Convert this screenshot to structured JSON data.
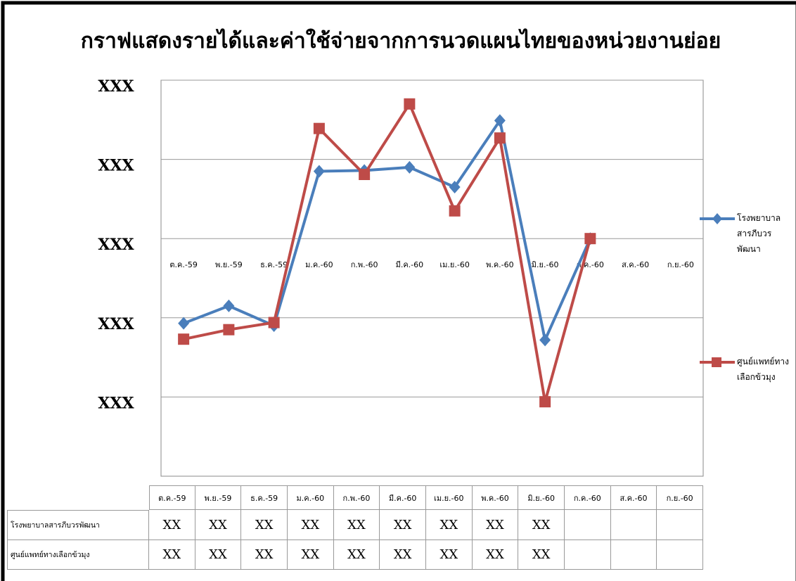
{
  "chart_data": {
    "type": "line",
    "title": "กราฟแสดงรายได้และค่าใช้จ่ายจากการนวดแผนไทยของหน่วยงานย่อย",
    "categories": [
      "ต.ค.-59",
      "พ.ย.-59",
      "ธ.ค.-59",
      "ม.ค.-60",
      "ก.พ.-60",
      "มี.ค.-60",
      "เม.ย.-60",
      "พ.ค.-60",
      "มิ.ย.-60",
      "ก.ค.-60",
      "ส.ค.-60",
      "ก.ย.-60"
    ],
    "series": [
      {
        "name": "โรงพยาบาลสารภีบวรพัฒนา",
        "color": "#4a7ebb",
        "marker": "diamond",
        "values": [
          -1.07,
          -0.85,
          -1.1,
          0.85,
          0.86,
          0.9,
          0.65,
          1.49,
          -1.28,
          0,
          null,
          null
        ]
      },
      {
        "name": "ศูนย์แพทย์ทางเลือกข้วมุง",
        "color": "#be4b48",
        "marker": "square",
        "values": [
          -1.27,
          -1.15,
          -1.06,
          1.39,
          0.81,
          1.7,
          0.35,
          1.27,
          -2.06,
          0,
          null,
          null
        ]
      }
    ],
    "ylim": [
      -3,
      2
    ],
    "yticks": [
      {
        "value": 2,
        "label": "XXX"
      },
      {
        "value": 1,
        "label": "XXX"
      },
      {
        "value": 0,
        "label": "XXX"
      },
      {
        "value": -1,
        "label": "XXX"
      },
      {
        "value": -2,
        "label": "XXX"
      }
    ],
    "grid": true,
    "legend": "right",
    "data_table": [
      [
        "XX",
        "XX",
        "XX",
        "XX",
        "XX",
        "XX",
        "XX",
        "XX",
        "XX"
      ],
      [
        "XX",
        "XX",
        "XX",
        "XX",
        "XX",
        "XX",
        "XX",
        "XX",
        "XX"
      ]
    ]
  }
}
